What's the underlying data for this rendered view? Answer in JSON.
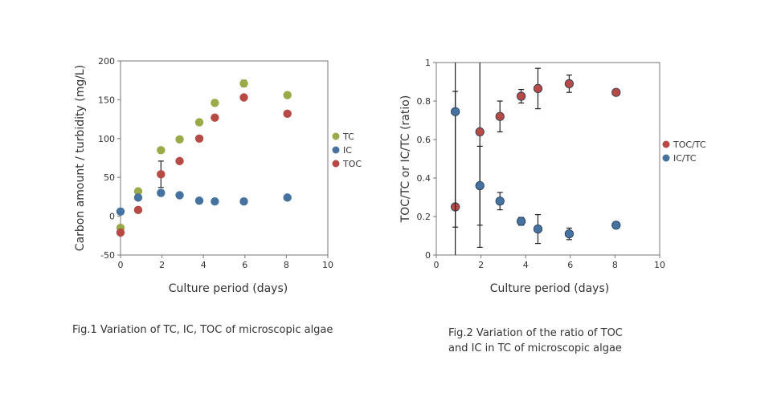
{
  "colors": {
    "tc": "#9aaa48",
    "ic": "#45729e",
    "toc": "#b84a45",
    "axis": "#777777"
  },
  "chart_data": [
    {
      "type": "scatter",
      "title": "",
      "xlabel": "Culture period (days)",
      "ylabel": "Carbon amount / turbidity (mg/L)",
      "xlim": [
        0,
        10
      ],
      "ylim": [
        -50,
        200
      ],
      "xticks": [
        0,
        2,
        4,
        6,
        8,
        10
      ],
      "yticks": [
        -50,
        0,
        50,
        100,
        150,
        200
      ],
      "xtick_labels": [
        "0",
        "2",
        "4",
        "6",
        "8",
        "10"
      ],
      "ytick_labels": [
        "-50",
        "0",
        "50",
        "100",
        "150",
        "200"
      ],
      "caption": "Fig.1 Variation of TC, IC, TOC of microscopic algae",
      "legend_position": "right",
      "series": [
        {
          "name": "TC",
          "color_key": "tc",
          "x": [
            0,
            0.85,
            1.95,
            2.85,
            3.8,
            4.55,
            5.95,
            8.05
          ],
          "y": [
            -15,
            32,
            85,
            99,
            121,
            146,
            171,
            156
          ],
          "err": [
            0,
            0,
            0,
            0,
            0,
            0,
            4,
            0
          ]
        },
        {
          "name": "IC",
          "color_key": "ic",
          "x": [
            0,
            0.85,
            1.95,
            2.85,
            3.8,
            4.55,
            5.95,
            8.05
          ],
          "y": [
            6,
            24,
            30,
            27,
            20,
            19,
            19,
            24
          ],
          "err": [
            0,
            0,
            0,
            0,
            0,
            0,
            0,
            0
          ]
        },
        {
          "name": "TOC",
          "color_key": "toc",
          "x": [
            0,
            0.85,
            1.95,
            2.85,
            3.8,
            4.55,
            5.95,
            8.05
          ],
          "y": [
            -21,
            8,
            54,
            71,
            100,
            127,
            153,
            132
          ],
          "err": [
            0,
            0,
            17,
            0,
            0,
            0,
            3,
            0
          ]
        }
      ]
    },
    {
      "type": "scatter",
      "title": "",
      "xlabel": "Culture period (days)",
      "ylabel": "TOC/TC or IC/TC (ratio)",
      "xlim": [
        0,
        10
      ],
      "ylim": [
        0,
        1
      ],
      "xticks": [
        0,
        2,
        4,
        6,
        8,
        10
      ],
      "yticks": [
        0,
        0.2,
        0.4,
        0.6,
        0.8,
        1
      ],
      "xtick_labels": [
        "0",
        "2",
        "4",
        "6",
        "8",
        "10"
      ],
      "ytick_labels": [
        "0",
        "0.2",
        "0.4",
        "0.6",
        "0.8",
        "1"
      ],
      "caption_lines": [
        "Fig.2 Variation of the ratio of TOC",
        "and IC in TC of microscopic algae"
      ],
      "legend_position": "right",
      "series": [
        {
          "name": "TOC/TC",
          "color_key": "toc",
          "x": [
            0.85,
            1.95,
            2.85,
            3.8,
            4.55,
            5.95,
            8.05
          ],
          "y": [
            0.25,
            0.64,
            0.72,
            0.825,
            0.865,
            0.89,
            0.845
          ],
          "err": [
            0.6,
            0.6,
            0.08,
            0.035,
            0.105,
            0.045,
            0
          ]
        },
        {
          "name": "IC/TC",
          "color_key": "ic",
          "x": [
            0.85,
            1.95,
            2.85,
            3.8,
            4.55,
            5.95,
            8.05
          ],
          "y": [
            0.745,
            0.36,
            0.28,
            0.175,
            0.135,
            0.11,
            0.155
          ],
          "err": [
            0.6,
            0.205,
            0.045,
            0.02,
            0.075,
            0.03,
            0
          ]
        }
      ]
    }
  ]
}
